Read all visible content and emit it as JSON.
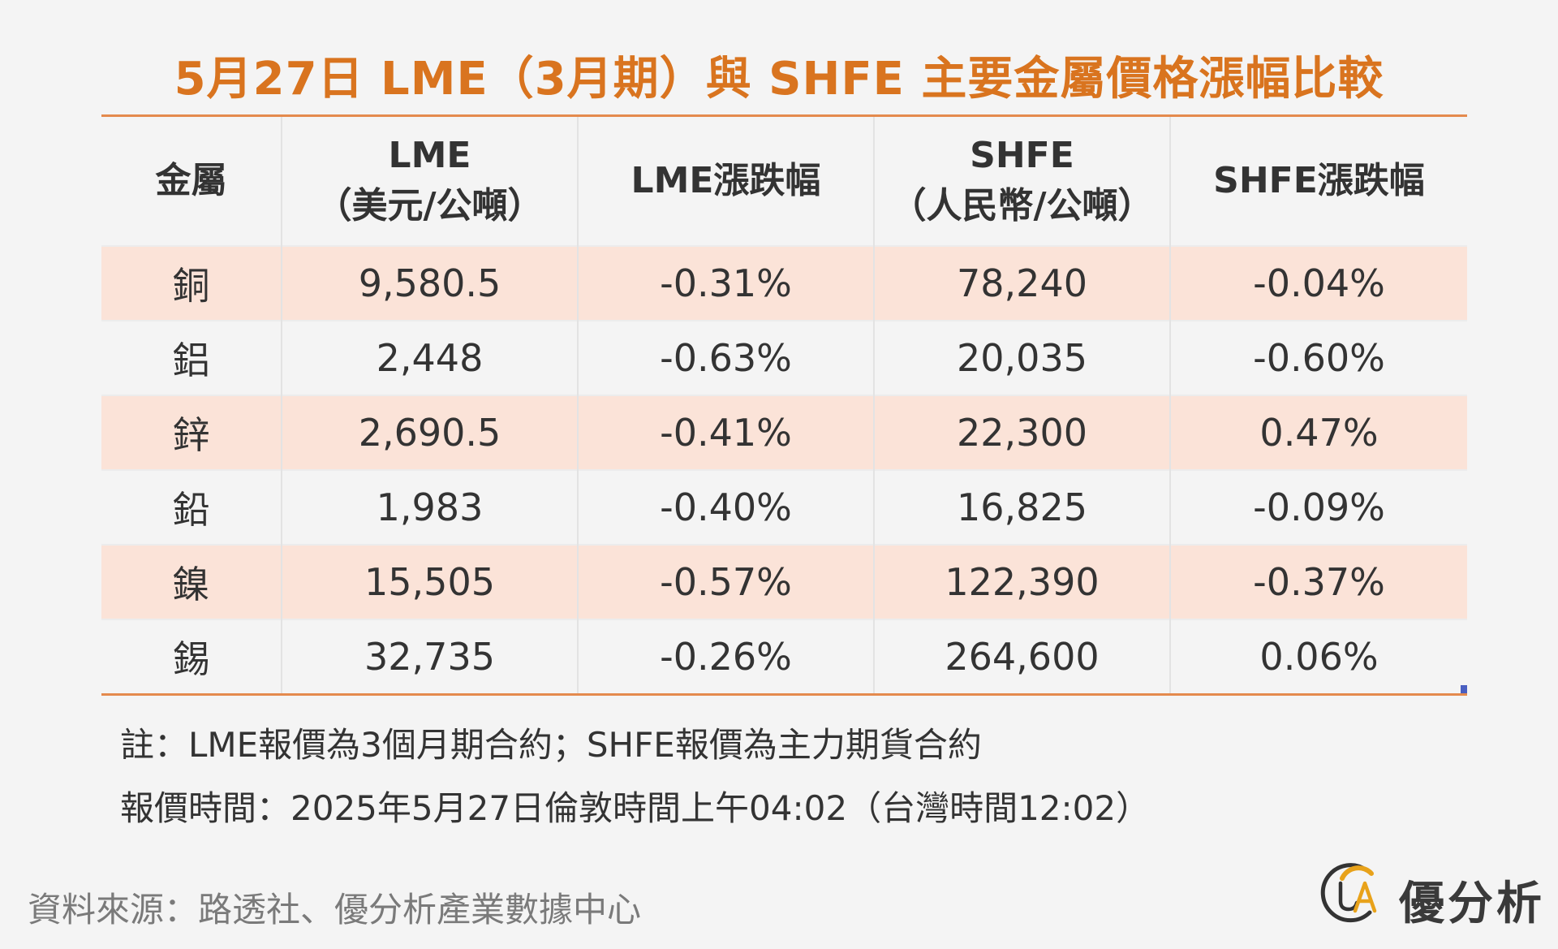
{
  "title": "5月27日 LME（3月期）與 SHFE 主要金屬價格漲幅比較",
  "table": {
    "headers": [
      {
        "line1": "金屬",
        "line2": ""
      },
      {
        "line1": "LME",
        "line2": "（美元/公噸）"
      },
      {
        "line1": "LME漲跌幅",
        "line2": ""
      },
      {
        "line1": "SHFE",
        "line2": "（人民幣/公噸）"
      },
      {
        "line1": "SHFE漲跌幅",
        "line2": ""
      }
    ],
    "rows": [
      {
        "metal": "銅",
        "lme": "9,580.5",
        "lme_change": "-0.31%",
        "shfe": "78,240",
        "shfe_change": "-0.04%"
      },
      {
        "metal": "鋁",
        "lme": "2,448",
        "lme_change": "-0.63%",
        "shfe": "20,035",
        "shfe_change": "-0.60%"
      },
      {
        "metal": "鋅",
        "lme": "2,690.5",
        "lme_change": "-0.41%",
        "shfe": "22,300",
        "shfe_change": "0.47%"
      },
      {
        "metal": "鉛",
        "lme": "1,983",
        "lme_change": "-0.40%",
        "shfe": "16,825",
        "shfe_change": "-0.09%"
      },
      {
        "metal": "鎳",
        "lme": "15,505",
        "lme_change": "-0.57%",
        "shfe": "122,390",
        "shfe_change": "-0.37%"
      },
      {
        "metal": "錫",
        "lme": "32,735",
        "lme_change": "-0.26%",
        "shfe": "264,600",
        "shfe_change": "0.06%"
      }
    ]
  },
  "notes": {
    "note1": "註：LME報價為3個月期合約；SHFE報價為主力期貨合約",
    "note2": "報價時間：2025年5月27日倫敦時間上午04:02（台灣時間12:02）"
  },
  "source": "資料來源：路透社、優分析產業數據中心",
  "brand": {
    "name": "優分析",
    "logo_icon": "ua-logo-icon"
  },
  "colors": {
    "title": "#d9741f",
    "rule": "#e48a4d",
    "row_shade": "#fbe3d8",
    "background": "#f4f4f4"
  }
}
